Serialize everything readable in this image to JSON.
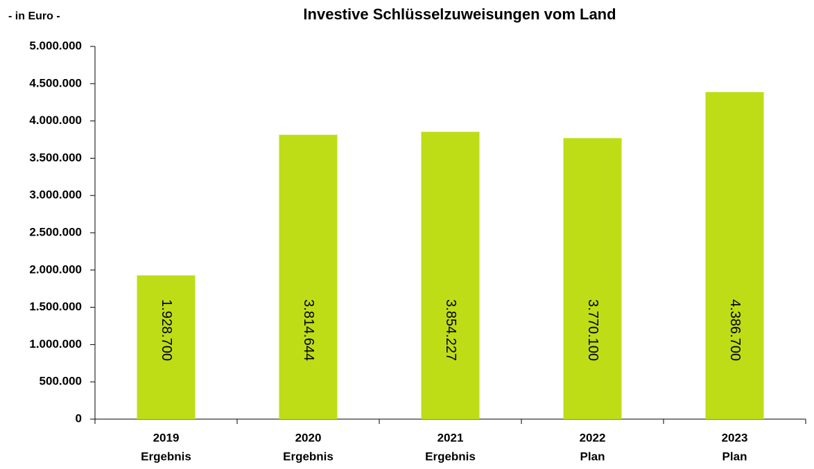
{
  "chart_data": {
    "type": "bar",
    "title": "Investive Schlüsselzuweisungen vom Land",
    "unit_label": "- in Euro -",
    "categories": [
      [
        "2019",
        "Ergebnis"
      ],
      [
        "2020",
        "Ergebnis"
      ],
      [
        "2021",
        "Ergebnis"
      ],
      [
        "2022",
        "Plan"
      ],
      [
        "2023",
        "Plan"
      ]
    ],
    "values": [
      1928700,
      3814644,
      3854227,
      3770100,
      4386700
    ],
    "value_labels": [
      "1.928.700",
      "3.814.644",
      "3.854.227",
      "3.770.100",
      "4.386.700"
    ],
    "color": "#bedd17",
    "ylim": [
      0,
      5000000
    ],
    "yticks": [
      0,
      {
        "value": 500000,
        "label": "500.000"
      },
      {
        "value": 1000000,
        "label": "1.000.000"
      },
      {
        "value": 1500000,
        "label": "1.500.000"
      },
      {
        "value": 2000000,
        "label": "2.000.000"
      },
      {
        "value": 2500000,
        "label": "2.500.000"
      },
      {
        "value": 3000000,
        "label": "3.000.000"
      },
      {
        "value": 3500000,
        "label": "3.500.000"
      },
      {
        "value": 4000000,
        "label": "4.000.000"
      },
      {
        "value": 4500000,
        "label": "4.500.000"
      },
      {
        "value": 5000000,
        "label": "5.000.000"
      }
    ],
    "grid": false
  }
}
